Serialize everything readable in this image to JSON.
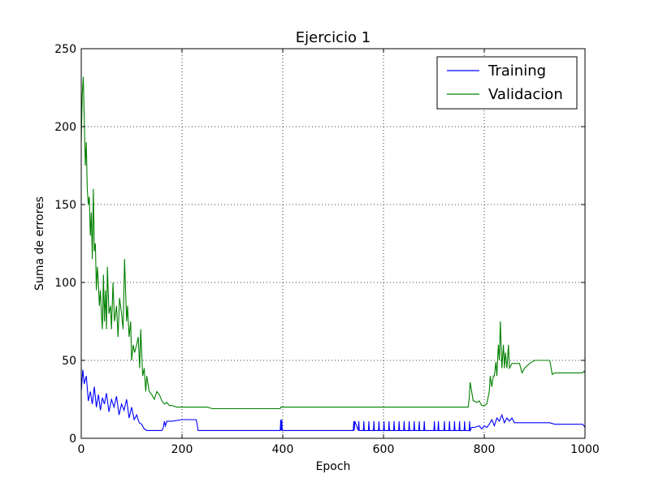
{
  "chart_data": {
    "type": "line",
    "title": "Ejercicio 1",
    "xlabel": "Epoch",
    "ylabel": "Suma de errores",
    "xlim": [
      0,
      1000
    ],
    "ylim": [
      0,
      250
    ],
    "xticks": [
      "0",
      "200",
      "400",
      "600",
      "800",
      "1000"
    ],
    "yticks": [
      "0",
      "50",
      "100",
      "150",
      "200",
      "250"
    ],
    "grid": true,
    "legend_position": "top-right",
    "series": [
      {
        "name": "Training",
        "color": "#0000ff",
        "x": [
          0,
          3,
          6,
          10,
          14,
          18,
          22,
          26,
          30,
          34,
          38,
          42,
          46,
          50,
          55,
          60,
          65,
          70,
          75,
          80,
          85,
          90,
          95,
          100,
          105,
          110,
          115,
          120,
          125,
          130,
          140,
          150,
          160,
          163,
          165,
          167,
          170,
          180,
          200,
          210,
          228,
          230,
          232,
          240,
          260,
          300,
          350,
          395,
          396,
          397,
          398,
          399,
          400,
          420,
          450,
          500,
          530,
          540,
          541,
          542,
          543,
          550,
          551,
          552,
          560,
          561,
          562,
          570,
          571,
          572,
          580,
          581,
          582,
          590,
          591,
          592,
          600,
          601,
          602,
          610,
          611,
          612,
          620,
          621,
          622,
          630,
          631,
          632,
          640,
          641,
          642,
          650,
          651,
          652,
          660,
          661,
          662,
          670,
          671,
          672,
          680,
          681,
          682,
          700,
          701,
          702,
          708,
          709,
          710,
          720,
          721,
          722,
          730,
          731,
          732,
          740,
          741,
          742,
          750,
          751,
          752,
          760,
          761,
          762,
          770,
          771,
          772,
          775,
          780,
          790,
          795,
          800,
          805,
          810,
          815,
          820,
          825,
          830,
          835,
          840,
          845,
          850,
          855,
          860,
          870,
          880,
          900,
          930,
          940,
          960,
          990,
          995,
          998,
          1000
        ],
        "y": [
          30,
          44,
          35,
          40,
          24,
          30,
          22,
          33,
          20,
          28,
          18,
          26,
          22,
          29,
          17,
          25,
          20,
          27,
          15,
          22,
          18,
          25,
          13,
          20,
          12,
          15,
          10,
          9,
          6,
          5,
          5,
          5,
          5,
          7,
          11,
          8,
          11,
          11,
          12,
          12,
          12,
          9,
          5,
          5,
          5,
          5,
          5,
          5,
          12,
          5,
          12,
          5,
          5,
          5,
          5,
          5,
          5,
          5,
          11,
          5,
          11,
          5,
          11,
          5,
          5,
          11,
          5,
          5,
          11,
          5,
          5,
          11,
          5,
          5,
          11,
          5,
          5,
          11,
          5,
          5,
          11,
          5,
          5,
          11,
          5,
          5,
          11,
          5,
          5,
          11,
          5,
          5,
          11,
          5,
          5,
          11,
          5,
          5,
          11,
          5,
          5,
          11,
          5,
          5,
          11,
          5,
          5,
          11,
          5,
          5,
          11,
          5,
          5,
          11,
          5,
          5,
          11,
          5,
          5,
          11,
          5,
          5,
          11,
          5,
          5,
          11,
          5,
          7,
          7,
          8,
          6,
          8,
          7,
          9,
          12,
          8,
          13,
          11,
          15,
          10,
          13,
          11,
          13,
          10,
          10,
          10,
          10,
          10,
          9,
          9,
          9,
          9,
          8,
          7
        ]
      },
      {
        "name": "Validacion",
        "color": "#008000",
        "x": [
          0,
          2,
          4,
          6,
          8,
          10,
          12,
          14,
          16,
          18,
          20,
          22,
          24,
          26,
          28,
          30,
          32,
          34,
          36,
          38,
          40,
          42,
          44,
          46,
          48,
          50,
          52,
          55,
          58,
          60,
          63,
          66,
          70,
          73,
          76,
          80,
          83,
          86,
          90,
          92,
          95,
          98,
          100,
          103,
          106,
          110,
          113,
          116,
          118,
          120,
          122,
          125,
          128,
          130,
          135,
          140,
          145,
          150,
          155,
          160,
          165,
          170,
          175,
          180,
          190,
          200,
          220,
          240,
          250,
          260,
          300,
          350,
          395,
          396,
          400,
          450,
          500,
          550,
          600,
          650,
          700,
          750,
          768,
          770,
          772,
          775,
          778,
          780,
          785,
          790,
          795,
          800,
          805,
          810,
          812,
          815,
          818,
          820,
          823,
          825,
          828,
          830,
          832,
          835,
          838,
          840,
          842,
          845,
          848,
          850,
          855,
          860,
          865,
          870,
          875,
          880,
          890,
          900,
          910,
          920,
          930,
          935,
          940,
          950,
          960,
          980,
          995,
          998,
          1000
        ],
        "y": [
          190,
          220,
          232,
          205,
          175,
          190,
          160,
          150,
          155,
          130,
          145,
          115,
          160,
          120,
          125,
          95,
          110,
          100,
          85,
          95,
          80,
          70,
          105,
          75,
          95,
          70,
          110,
          80,
          85,
          70,
          100,
          75,
          85,
          65,
          90,
          80,
          70,
          115,
          75,
          85,
          65,
          75,
          50,
          60,
          55,
          60,
          65,
          45,
          70,
          55,
          40,
          45,
          30,
          40,
          30,
          28,
          25,
          30,
          28,
          24,
          22,
          23,
          21,
          21,
          20,
          20,
          20,
          20,
          20,
          19,
          19,
          19,
          19,
          20,
          20,
          20,
          20,
          20,
          20,
          20,
          20,
          20,
          20,
          25,
          36,
          30,
          24,
          24,
          23,
          24,
          21,
          21,
          22,
          30,
          40,
          33,
          40,
          40,
          49,
          40,
          60,
          50,
          75,
          45,
          60,
          45,
          55,
          45,
          60,
          45,
          48,
          48,
          48,
          48,
          42,
          45,
          48,
          50,
          50,
          50,
          50,
          41,
          42,
          42,
          42,
          42,
          42,
          43,
          42
        ]
      }
    ]
  }
}
